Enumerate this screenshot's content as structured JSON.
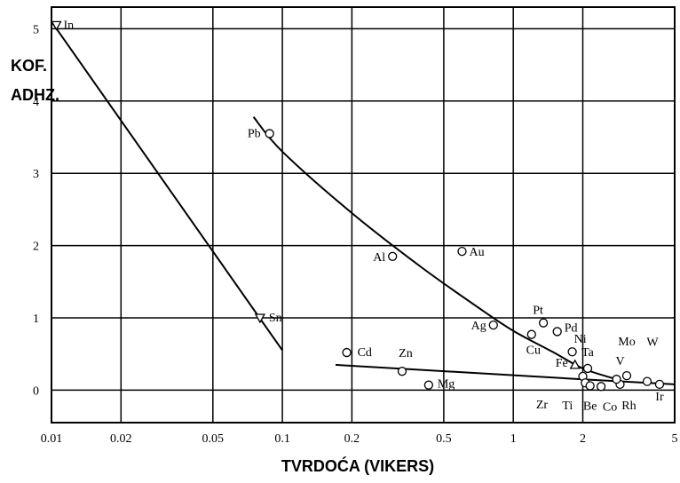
{
  "chart_data": {
    "type": "line",
    "title": "",
    "ylabel_lines": [
      "KOF.",
      "ADHZ."
    ],
    "xlabel": "TVRDOĆA (VIKERS)",
    "x_scale": "log",
    "xlim": [
      0.01,
      5
    ],
    "ylim": [
      -0.45,
      5.3
    ],
    "grid": true,
    "x_ticks": [
      {
        "v": 0.01,
        "label": "0.01"
      },
      {
        "v": 0.02,
        "label": "0.02"
      },
      {
        "v": 0.05,
        "label": "0.05"
      },
      {
        "v": 0.1,
        "label": "0.1"
      },
      {
        "v": 0.2,
        "label": "0.2"
      },
      {
        "v": 0.5,
        "label": "0.5"
      },
      {
        "v": 1,
        "label": "1"
      },
      {
        "v": 2,
        "label": "2"
      },
      {
        "v": 5,
        "label": "5"
      }
    ],
    "y_ticks": [
      {
        "v": 0,
        "label": "0"
      },
      {
        "v": 1,
        "label": "1"
      },
      {
        "v": 2,
        "label": "2"
      },
      {
        "v": 3,
        "label": "3"
      },
      {
        "v": 4,
        "label": "4"
      },
      {
        "v": 5,
        "label": "5"
      }
    ],
    "series": [
      {
        "marker": "triangle-down",
        "points": [
          {
            "label": "In",
            "x": 0.0105,
            "y": 5.05
          },
          {
            "label": "Sn",
            "x": 0.08,
            "y": 1.0
          }
        ],
        "line": [
          [
            0.01,
            5.1
          ],
          [
            0.1,
            0.55
          ]
        ]
      },
      {
        "marker": "circle",
        "points": [
          {
            "label": "Pb",
            "x": 0.088,
            "y": 3.55
          },
          {
            "label": "Al",
            "x": 0.3,
            "y": 1.85
          },
          {
            "label": "Au",
            "x": 0.6,
            "y": 1.92
          },
          {
            "label": "Ag",
            "x": 0.82,
            "y": 0.9
          },
          {
            "label": "Pt",
            "x": 1.35,
            "y": 0.93
          },
          {
            "label": "Cu",
            "x": 1.2,
            "y": 0.77
          },
          {
            "label": "Pd",
            "x": 1.55,
            "y": 0.81
          },
          {
            "label": "Ni",
            "x": 1.8,
            "y": 0.53
          },
          {
            "label": "Cd",
            "x": 0.19,
            "y": 0.52
          },
          {
            "label": "Zn",
            "x": 0.33,
            "y": 0.26
          },
          {
            "label": "Mg",
            "x": 0.43,
            "y": 0.07
          },
          {
            "label": "Zr",
            "x": 2.0,
            "y": 0.19
          },
          {
            "label": "Ti",
            "x": 2.05,
            "y": 0.1
          },
          {
            "label": "Be",
            "x": 2.15,
            "y": 0.06
          },
          {
            "label": "Co",
            "x": 2.4,
            "y": 0.05
          },
          {
            "label": "Rh",
            "x": 2.9,
            "y": 0.08
          },
          {
            "label": "Mo",
            "x": 3.1,
            "y": 0.2
          },
          {
            "label": "W",
            "x": 3.8,
            "y": 0.12
          },
          {
            "label": "Ir",
            "x": 4.3,
            "y": 0.08
          },
          {
            "label": "Ta",
            "x": 2.1,
            "y": 0.3
          },
          {
            "label": "V",
            "x": 2.8,
            "y": 0.15
          }
        ],
        "curve": [
          [
            0.075,
            3.78
          ],
          [
            0.1,
            3.3
          ],
          [
            0.2,
            2.45
          ],
          [
            0.4,
            1.7
          ],
          [
            0.7,
            1.15
          ],
          [
            1.0,
            0.82
          ],
          [
            1.5,
            0.52
          ],
          [
            2.0,
            0.3
          ],
          [
            2.8,
            0.15
          ]
        ],
        "line": [
          [
            0.17,
            0.35
          ],
          [
            2.0,
            0.15
          ],
          [
            5.0,
            0.08
          ]
        ]
      },
      {
        "marker": "triangle-up",
        "points": [
          {
            "label": "Fe",
            "x": 1.85,
            "y": 0.35
          }
        ]
      }
    ]
  }
}
